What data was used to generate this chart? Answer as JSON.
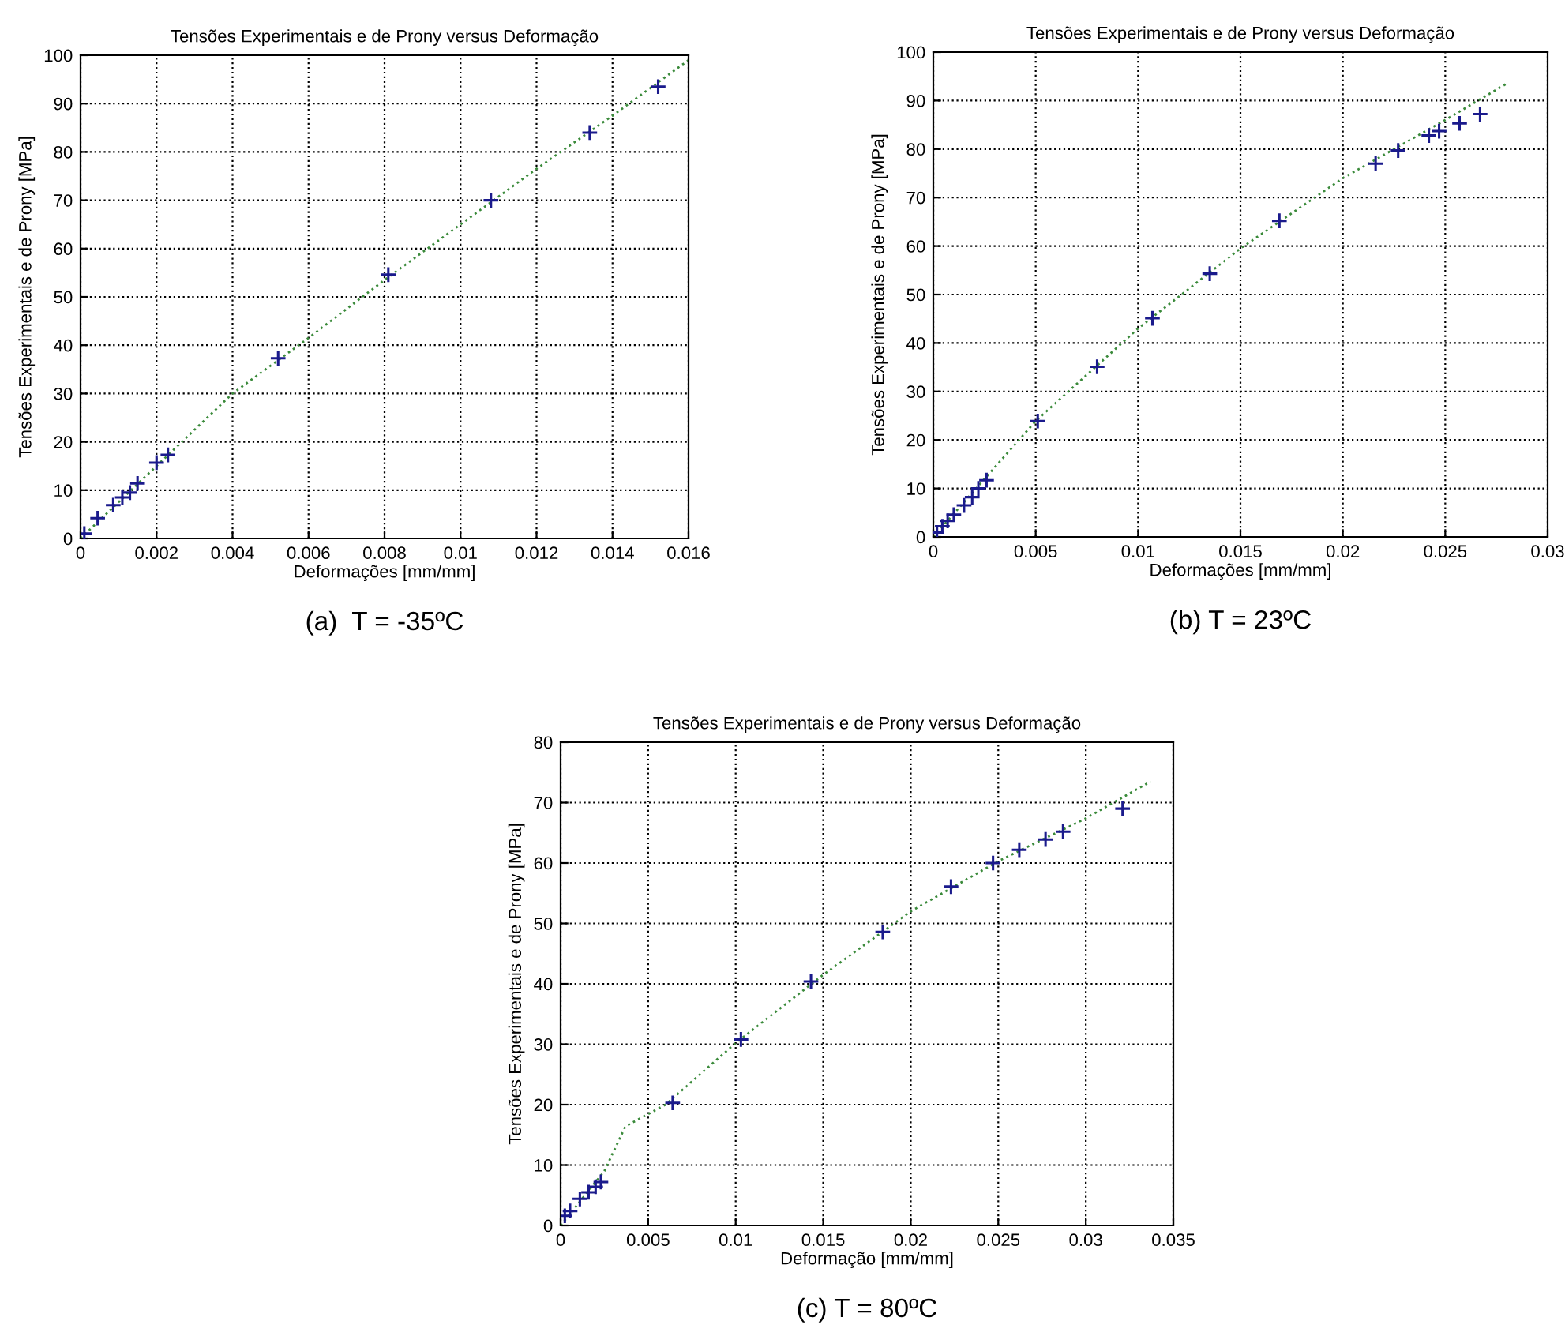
{
  "chart_data": [
    {
      "type": "scatter",
      "title": "Tensões Experimentais e de Prony versus Deformação",
      "xlabel": "Deformações [mm/mm]",
      "ylabel": "Tensões Experimentais e de Prony [MPa]",
      "xlim": [
        0,
        0.016
      ],
      "ylim": [
        0,
        100
      ],
      "xticks": [
        0,
        0.002,
        0.004,
        0.006,
        0.008,
        0.01,
        0.012,
        0.014,
        0.016
      ],
      "yticks": [
        0,
        10,
        20,
        30,
        40,
        50,
        60,
        70,
        80,
        90,
        100
      ],
      "grid": true,
      "legend": false,
      "annotations": [
        "(a)  T = -35ºC"
      ],
      "series": [
        {
          "type": "scatter",
          "color": "#1a1a8c",
          "marker": "cross",
          "x": [
            0.0001,
            0.00045,
            0.00086,
            0.0011,
            0.0013,
            0.0015,
            0.002,
            0.0023,
            0.0052,
            0.0081,
            0.0108,
            0.0134,
            0.0152
          ],
          "values": [
            1,
            4.2,
            6.9,
            8.5,
            9.5,
            11.4,
            15.7,
            17.3,
            37.3,
            54.6,
            70,
            84,
            93.5
          ]
        },
        {
          "type": "line",
          "color": "#3a8a3a",
          "line_style": "dotted",
          "marker": "none",
          "x": [
            0,
            0.004,
            0.006,
            0.008,
            0.01,
            0.012,
            0.014,
            0.016
          ],
          "values": [
            0,
            30,
            41.5,
            53.5,
            65,
            76.5,
            87.5,
            99
          ]
        }
      ]
    },
    {
      "type": "scatter",
      "title": "Tensões Experimentais e de Prony versus Deformação",
      "xlabel": "Deformações [mm/mm]",
      "ylabel": "Tensões Experimentais e de Prony [MPa]",
      "xlim": [
        0,
        0.03
      ],
      "ylim": [
        0,
        100
      ],
      "xticks": [
        0,
        0.005,
        0.01,
        0.015,
        0.02,
        0.025,
        0.03
      ],
      "yticks": [
        0,
        10,
        20,
        30,
        40,
        50,
        60,
        70,
        80,
        90,
        100
      ],
      "grid": true,
      "legend": false,
      "annotations": [
        "(b) T = 23ºC"
      ],
      "series": [
        {
          "type": "scatter",
          "color": "#1a1a8c",
          "marker": "cross",
          "x": [
            0.00018,
            0.00044,
            0.0007,
            0.001,
            0.0015,
            0.0019,
            0.0022,
            0.0026,
            0.0051,
            0.008,
            0.0107,
            0.0135,
            0.0169,
            0.0216,
            0.0227,
            0.0242,
            0.0247,
            0.0257,
            0.0267
          ],
          "values": [
            0.9,
            2.2,
            3.3,
            4.6,
            6.5,
            8.2,
            10,
            11.7,
            23.9,
            35.1,
            45.1,
            54.3,
            65.2,
            77,
            79.7,
            82.8,
            83.7,
            85.3,
            87.2
          ]
        },
        {
          "type": "line",
          "color": "#3a8a3a",
          "line_style": "dotted",
          "marker": "none",
          "x": [
            0,
            0.005,
            0.01,
            0.015,
            0.02,
            0.025,
            0.028
          ],
          "values": [
            0,
            23.9,
            43,
            59.5,
            74,
            86,
            93.5
          ]
        }
      ]
    },
    {
      "type": "scatter",
      "title": "Tensões Experimentais e de Prony versus Deformação",
      "xlabel": "Deformação [mm/mm]",
      "ylabel": "Tensões Experimentais e de Prony [MPa]",
      "xlim": [
        0,
        0.035
      ],
      "ylim": [
        0,
        80
      ],
      "xticks": [
        0,
        0.005,
        0.01,
        0.015,
        0.02,
        0.025,
        0.03,
        0.035
      ],
      "yticks": [
        0,
        10,
        20,
        30,
        40,
        50,
        60,
        70,
        80
      ],
      "grid": true,
      "legend": false,
      "annotations": [
        "(c) T = 80ºC"
      ],
      "series": [
        {
          "type": "scatter",
          "color": "#1a1a8c",
          "marker": "cross",
          "x": [
            0.00024,
            0.00054,
            0.0011,
            0.0016,
            0.002,
            0.0023,
            0.0064,
            0.0103,
            0.0143,
            0.0184,
            0.0223,
            0.0247,
            0.0262,
            0.0277,
            0.0287,
            0.0321
          ],
          "values": [
            1.6,
            2.4,
            4.4,
            5.5,
            6.4,
            7.2,
            20.3,
            30.8,
            40.4,
            48.6,
            56.1,
            60,
            62.2,
            63.9,
            65.2,
            69
          ]
        },
        {
          "type": "line",
          "color": "#3a8a3a",
          "line_style": "dotted",
          "marker": "none",
          "x": [
            0,
            0.0025,
            0.0037,
            0.006,
            0.01,
            0.015,
            0.02,
            0.025,
            0.03,
            0.0337
          ],
          "values": [
            0,
            9,
            16.4,
            20,
            30.2,
            41.5,
            52,
            60.3,
            67.4,
            73.5
          ]
        }
      ]
    }
  ]
}
